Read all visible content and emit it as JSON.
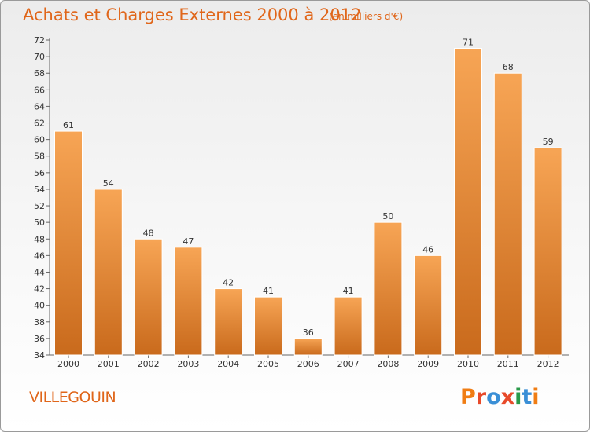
{
  "header": {
    "title": "Achats et Charges Externes 2000 à 2012",
    "subtitle": "(en milliers d'€)"
  },
  "footer": {
    "city": "VILLEGOUIN",
    "logo_text": "Proxiti"
  },
  "colors": {
    "accent": "#e0661a",
    "bar_top": "#f7a555",
    "bar_bottom": "#c96a1c",
    "logo": [
      "#f07d14",
      "#e84a2a",
      "#3a8fd6",
      "#e84a2a",
      "#2a9a4a",
      "#3a8fd6",
      "#f07d14"
    ]
  },
  "chart_data": {
    "type": "bar",
    "categories": [
      "2000",
      "2001",
      "2002",
      "2003",
      "2004",
      "2005",
      "2006",
      "2007",
      "2008",
      "2009",
      "2010",
      "2011",
      "2012"
    ],
    "values": [
      61,
      54,
      48,
      47,
      42,
      41,
      36,
      41,
      50,
      46,
      71,
      68,
      59
    ],
    "title": "Achats et Charges Externes 2000 à 2012",
    "ylim": [
      34,
      72
    ],
    "yticks": [
      34,
      36,
      38,
      40,
      42,
      44,
      46,
      48,
      50,
      52,
      54,
      56,
      58,
      60,
      62,
      64,
      66,
      68,
      70,
      72
    ],
    "grid": false,
    "data_labels": true
  }
}
